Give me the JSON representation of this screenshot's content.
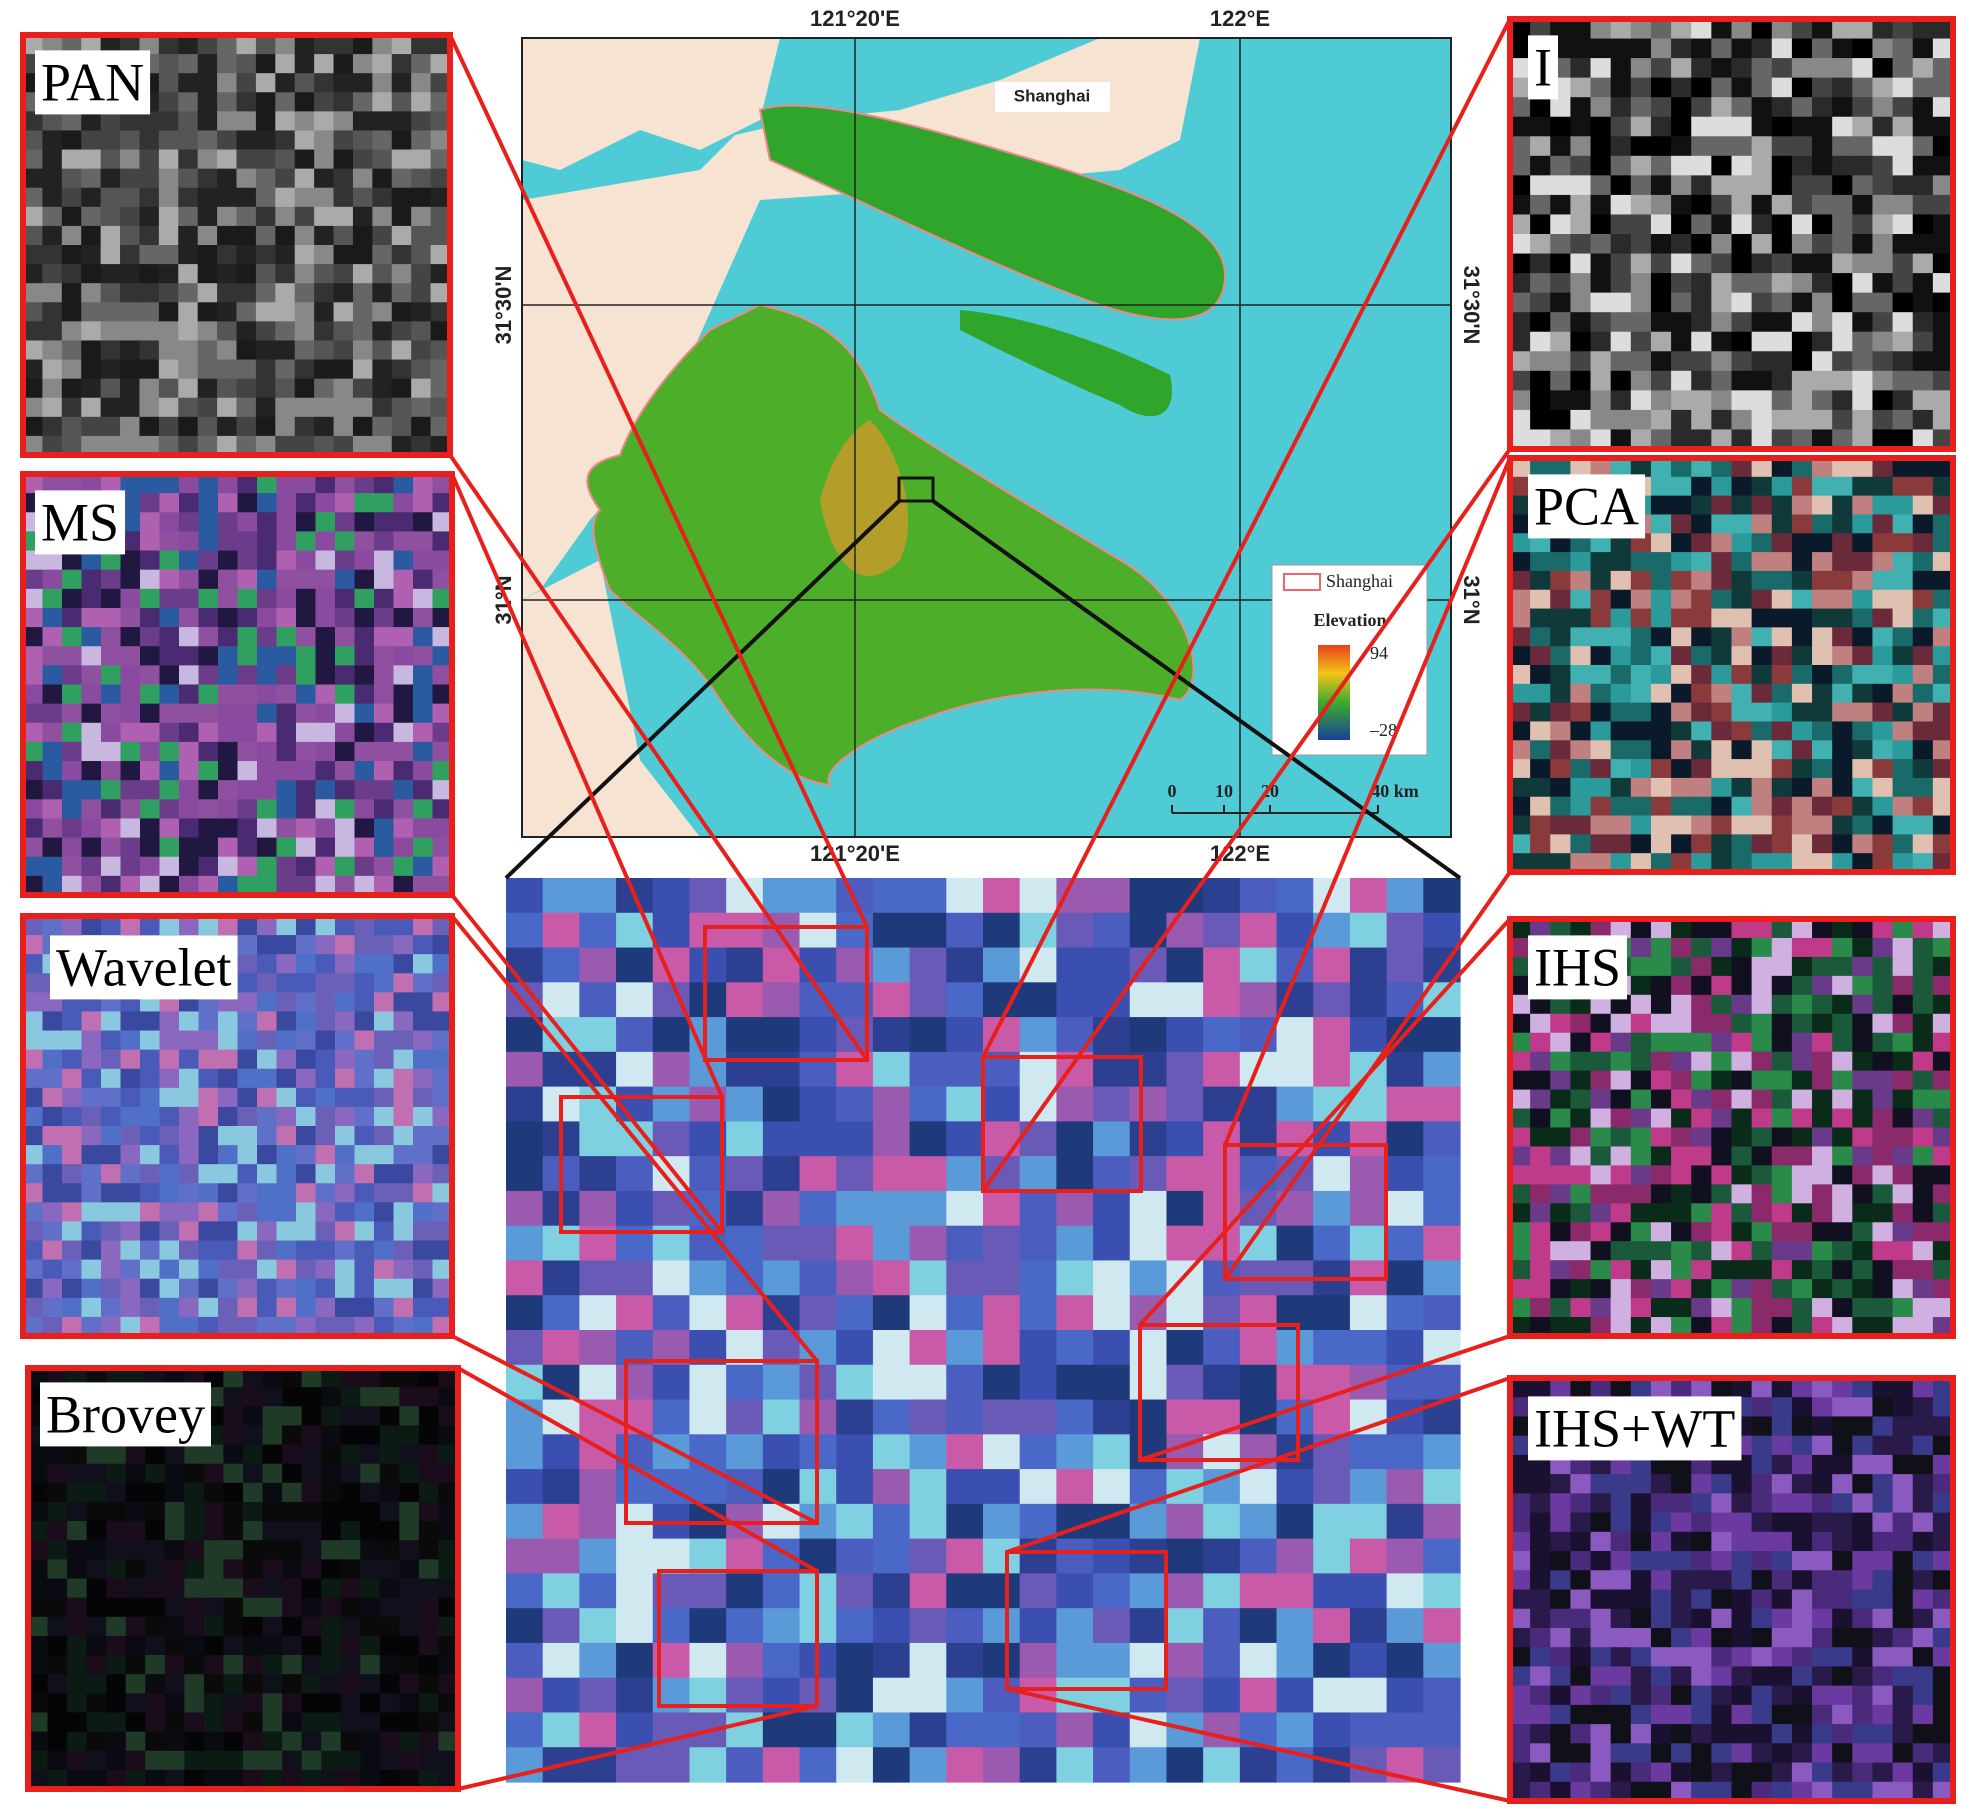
{
  "map": {
    "place_label": "Shanghai",
    "lon_labels": [
      "121°20'E",
      "122°E"
    ],
    "lat_labels": [
      "31°30'N",
      "31°N"
    ],
    "legend": {
      "boundary": "Shanghai",
      "title": "Elevation",
      "max": "94",
      "min": "–28"
    },
    "scale_bar": [
      "0",
      "10",
      "20",
      "40 km"
    ]
  },
  "panels": [
    {
      "label": "PAN"
    },
    {
      "label": "MS"
    },
    {
      "label": "Wavelet"
    },
    {
      "label": "Brovey"
    },
    {
      "label": "I"
    },
    {
      "label": "PCA"
    },
    {
      "label": "IHS"
    },
    {
      "label": "IHS+WT"
    }
  ]
}
